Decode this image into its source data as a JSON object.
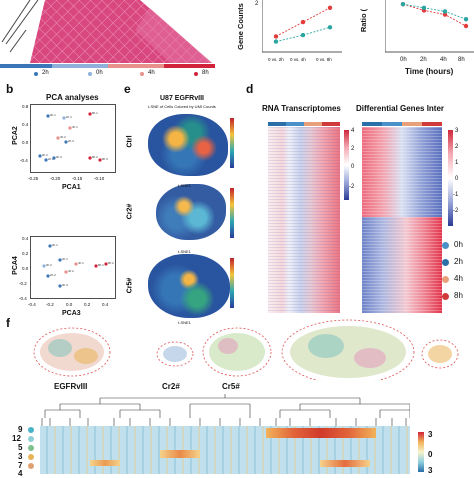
{
  "figure": {
    "panel_letters": [
      "b",
      "e",
      "d",
      "f"
    ],
    "panel_a": {
      "legend": [
        {
          "label": "2h",
          "color": "#3b76b8"
        },
        {
          "label": "0h",
          "color": "#8fb0d8"
        },
        {
          "label": "4h",
          "color": "#e8908a"
        },
        {
          "label": "8h",
          "color": "#d1243a"
        }
      ],
      "heatmap_color": "#de4f8c"
    },
    "panel_gene_counts": {
      "ylabel": "Gene Counts",
      "xticks": [
        "0 vs. 2h",
        "0 vs. 4h",
        "0 vs. 8h"
      ],
      "tick_values": [
        "2"
      ]
    },
    "panel_ratio": {
      "ylabel": "Ratio (",
      "xticks": [
        "0h",
        "2h",
        "4h",
        "8h"
      ],
      "xlabel": "Time (hours)"
    },
    "panel_b": {
      "title": "PCA analyses",
      "top": {
        "ylabel": "PCA2",
        "xlabel": "PCA1",
        "xticks": [
          "-0.25",
          "-0.20",
          "-0.15",
          "-0.10"
        ],
        "yticks": [
          "0.8",
          "0.4",
          "0.0",
          "-0.4"
        ]
      },
      "bottom": {
        "ylabel": "PCA4",
        "xlabel": "PCA3",
        "xticks": [
          "-0.4",
          "-0.2",
          "0.0",
          "0.2",
          "0.4"
        ],
        "yticks": [
          "0.4",
          "0.2",
          "0.0",
          "-0.2",
          "-0.4"
        ]
      }
    },
    "panel_e": {
      "title": "U87 EGFRvIII",
      "subtitle": "t-SNE of Cells Colored by UMI Counts",
      "rows": [
        "Ctrl",
        "Cr2#",
        "Cr5#"
      ],
      "xlabel": "t-SNE1",
      "ylabel": "t-SNE2"
    },
    "panel_d": {
      "title_left": "RNA Transcriptomes",
      "title_right": "Differential Genes Inter",
      "left_scale": [
        "4",
        "2",
        "0",
        "-2"
      ],
      "right_scale": [
        "3",
        "2",
        "1",
        "0",
        "-1",
        "-2"
      ],
      "legend": [
        {
          "label": "0h",
          "color": "#4a90c9"
        },
        {
          "label": "2h",
          "color": "#2a6fa8"
        },
        {
          "label": "4h",
          "color": "#e8a07a"
        },
        {
          "label": "8h",
          "color": "#d13a3a"
        }
      ]
    },
    "panel_f": {
      "labels": [
        "EGFRvIII",
        "Cr2#",
        "Cr5#"
      ],
      "row_labels": [
        "9",
        "12",
        "5",
        "3",
        "7",
        "4"
      ],
      "scale": [
        "3",
        "0",
        "3"
      ]
    }
  },
  "chart_data": [
    {
      "type": "line",
      "ylabel": "Gene Counts",
      "categories": [
        "0 vs. 2h",
        "0 vs. 4h",
        "0 vs. 8h"
      ],
      "series": [
        {
          "values": [
            1.2,
            2.3,
            3.4
          ],
          "color": "#e23b3b"
        },
        {
          "values": [
            0.8,
            1.3,
            1.9
          ],
          "color": "#2aa6a0"
        }
      ],
      "ylim": [
        0,
        4
      ]
    },
    {
      "type": "line",
      "ylabel": "Ratio (",
      "xlabel": "Time (hours)",
      "categories": [
        "0h",
        "2h",
        "4h",
        "8h"
      ],
      "series": [
        {
          "values": [
            0.92,
            0.8,
            0.72,
            0.5
          ],
          "color": "#e23b3b"
        },
        {
          "values": [
            0.92,
            0.85,
            0.78,
            0.63
          ],
          "color": "#2aa6a0"
        }
      ],
      "ylim": [
        0,
        1
      ]
    }
  ]
}
